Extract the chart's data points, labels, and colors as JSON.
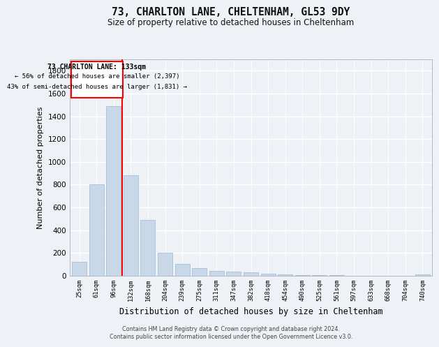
{
  "title1": "73, CHARLTON LANE, CHELTENHAM, GL53 9DY",
  "title2": "Size of property relative to detached houses in Cheltenham",
  "xlabel": "Distribution of detached houses by size in Cheltenham",
  "ylabel": "Number of detached properties",
  "categories": [
    "25sqm",
    "61sqm",
    "96sqm",
    "132sqm",
    "168sqm",
    "204sqm",
    "239sqm",
    "275sqm",
    "311sqm",
    "347sqm",
    "382sqm",
    "418sqm",
    "454sqm",
    "490sqm",
    "525sqm",
    "561sqm",
    "597sqm",
    "633sqm",
    "668sqm",
    "704sqm",
    "740sqm"
  ],
  "values": [
    125,
    800,
    1490,
    880,
    490,
    205,
    105,
    65,
    42,
    35,
    30,
    20,
    15,
    8,
    5,
    4,
    3,
    2,
    2,
    2,
    15
  ],
  "bar_color": "#c8d8e8",
  "bar_edgecolor": "#a8c0d4",
  "property_sqm": 133,
  "annotation_text1": "73 CHARLTON LANE: 133sqm",
  "annotation_text2": "← 56% of detached houses are smaller (2,397)",
  "annotation_text3": "43% of semi-detached houses are larger (1,831) →",
  "footer1": "Contains HM Land Registry data © Crown copyright and database right 2024.",
  "footer2": "Contains public sector information licensed under the Open Government Licence v3.0.",
  "ylim": [
    0,
    1900
  ],
  "yticks": [
    0,
    200,
    400,
    600,
    800,
    1000,
    1200,
    1400,
    1600,
    1800
  ],
  "bg_color": "#eef2f7",
  "grid_color": "#ffffff",
  "bar_width": 0.85
}
